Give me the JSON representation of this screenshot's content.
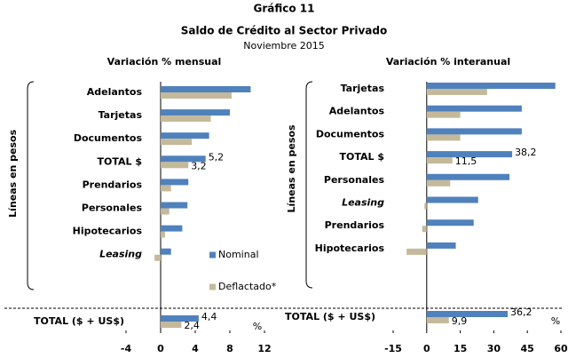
{
  "title": "Gráfico 11",
  "subtitle": "Saldo de Crédito al Sector Privado",
  "date": "Noviembre 2015",
  "chart_data": [
    {
      "type": "bar",
      "orientation": "horizontal",
      "title": "Variación % mensual",
      "y_axis_label": "Líneas en pesos",
      "categories": [
        "Adelantos",
        "Tarjetas",
        "Documentos",
        "TOTAL $",
        "Prendarios",
        "Personales",
        "Hipotecarios",
        "Leasing",
        "TOTAL ($ + US$)"
      ],
      "italic_categories": [
        7
      ],
      "series": [
        {
          "name": "Nominal",
          "color": "#4f81bd",
          "values": [
            10.4,
            8.0,
            5.6,
            5.2,
            3.2,
            3.1,
            2.5,
            1.2,
            4.4
          ],
          "value_labels": [
            null,
            null,
            null,
            "5,2",
            null,
            null,
            null,
            null,
            "4,4"
          ]
        },
        {
          "name": "Deflactado*",
          "color": "#c4b99a",
          "values": [
            8.2,
            5.8,
            3.6,
            3.2,
            1.2,
            1.0,
            0.5,
            -0.7,
            2.4
          ],
          "value_labels": [
            null,
            null,
            null,
            "3,2",
            null,
            null,
            null,
            null,
            "2,4"
          ]
        }
      ],
      "xlim": [
        -4,
        12
      ],
      "xticks": [
        -4,
        0,
        4,
        8,
        12
      ],
      "unit": "%",
      "legend": "lower right"
    },
    {
      "type": "bar",
      "orientation": "horizontal",
      "title": "Variación % interanual",
      "y_axis_label": "Líneas en pesos",
      "categories": [
        "Tarjetas",
        "Adelantos",
        "Documentos",
        "TOTAL $",
        "Personales",
        "Leasing",
        "Prendarios",
        "Hipotecarios",
        "TOTAL ($ + US$)"
      ],
      "italic_categories": [
        5
      ],
      "series": [
        {
          "color": "#4f81bd",
          "values": [
            57.5,
            42.5,
            42.5,
            38.2,
            37,
            23,
            21,
            13,
            36.2
          ],
          "value_labels": [
            null,
            null,
            null,
            "38,2",
            null,
            null,
            null,
            null,
            "36,2"
          ]
        },
        {
          "color": "#c4b99a",
          "values": [
            27,
            15,
            15,
            11.5,
            10.5,
            -1,
            -2,
            -9,
            9.9
          ],
          "value_labels": [
            null,
            null,
            null,
            "11,5",
            null,
            null,
            null,
            null,
            "9,9"
          ]
        }
      ],
      "xlim": [
        -15,
        60
      ],
      "xticks": [
        -15,
        0,
        15,
        30,
        45,
        60
      ],
      "unit": "%"
    }
  ]
}
